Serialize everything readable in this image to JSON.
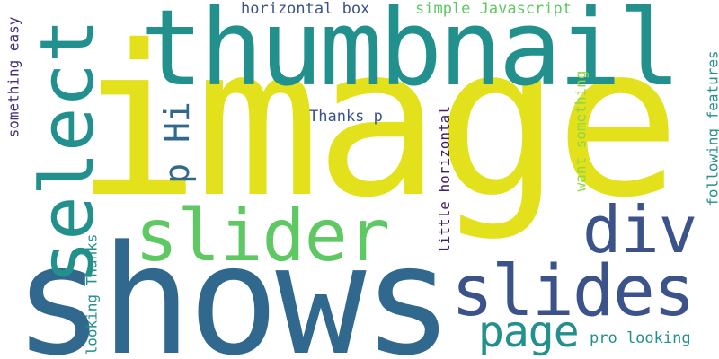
{
  "palette": {
    "yellow": "#e3e11b",
    "teal": "#22908c",
    "blue": "#30688e",
    "green": "#5ec962",
    "indigo": "#3b528b",
    "purple": "#472e7c",
    "lime": "#8fd744",
    "deep_purple": "#44206a"
  },
  "words": [
    {
      "text": "image",
      "color": "yellow"
    },
    {
      "text": "shows",
      "color": "blue"
    },
    {
      "text": "thumbnail",
      "color": "teal"
    },
    {
      "text": "select",
      "color": "teal"
    },
    {
      "text": "slider",
      "color": "green"
    },
    {
      "text": "slides",
      "color": "indigo"
    },
    {
      "text": "div",
      "color": "indigo"
    },
    {
      "text": "page",
      "color": "teal"
    },
    {
      "text": "p Hi",
      "color": "blue"
    },
    {
      "text": "horizontal box",
      "color": "indigo"
    },
    {
      "text": "simple Javascript",
      "color": "green"
    },
    {
      "text": "Thanks p",
      "color": "indigo"
    },
    {
      "text": "something easy",
      "color": "purple"
    },
    {
      "text": "looking Thanks",
      "color": "teal"
    },
    {
      "text": "little horizontal",
      "color": "deep_purple"
    },
    {
      "text": "want something",
      "color": "lime"
    },
    {
      "text": "following features",
      "color": "teal"
    },
    {
      "text": "pro looking",
      "color": "teal"
    }
  ]
}
